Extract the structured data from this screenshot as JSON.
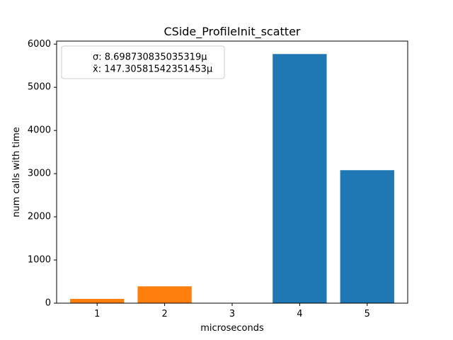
{
  "chart_data": {
    "type": "bar",
    "title": "CSide_ProfileInit_scatter",
    "xlabel": "microseconds",
    "ylabel": "num calls with time",
    "x_ticks": [
      "1",
      "2",
      "3",
      "4",
      "5"
    ],
    "y_ticks": [
      "0",
      "1000",
      "2000",
      "3000",
      "4000",
      "5000",
      "6000"
    ],
    "xlim": [
      0.4,
      5.6
    ],
    "ylim": [
      0,
      6070
    ],
    "grid": false,
    "legend_position": "top-left",
    "legend": [
      "σ: 8.698730835035319μ",
      "x̄: 147.30581542351453μ"
    ],
    "bars": [
      {
        "x": 1,
        "value": 100,
        "color": "#ff7f0e"
      },
      {
        "x": 2,
        "value": 390,
        "color": "#ff7f0e"
      },
      {
        "x": 3,
        "value": 0,
        "color": "#ff7f0e"
      },
      {
        "x": 4,
        "value": 5770,
        "color": "#1f77b4"
      },
      {
        "x": 5,
        "value": 3080,
        "color": "#1f77b4"
      }
    ],
    "bar_width": 0.8
  }
}
